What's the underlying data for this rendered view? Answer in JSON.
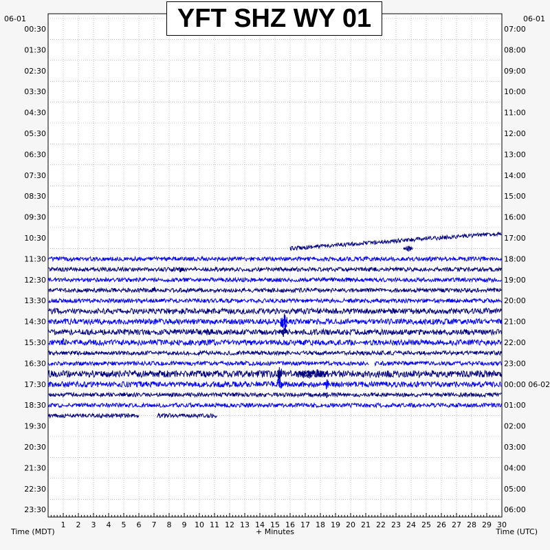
{
  "chart_data": {
    "type": "line",
    "title": "YFT SHZ WY 01",
    "date_left": "06-01",
    "date_right": "06-01",
    "left_times": [
      "00:30",
      "01:30",
      "02:30",
      "03:30",
      "04:30",
      "05:30",
      "06:30",
      "07:30",
      "08:30",
      "09:30",
      "10:30",
      "11:30",
      "12:30",
      "13:30",
      "14:30",
      "15:30",
      "16:30",
      "17:30",
      "18:30",
      "19:30",
      "20:30",
      "21:30",
      "22:30",
      "23:30"
    ],
    "right_times": [
      "07:00",
      "08:00",
      "09:00",
      "10:00",
      "11:00",
      "12:00",
      "13:00",
      "14:00",
      "15:00",
      "16:00",
      "17:00",
      "18:00",
      "19:00",
      "20:00",
      "21:00",
      "22:00",
      "23:00",
      "00:00 06-02",
      "01:00",
      "02:00",
      "03:00",
      "04:00",
      "05:00",
      "06:00"
    ],
    "xticks": [
      "1",
      "2",
      "3",
      "4",
      "5",
      "6",
      "7",
      "8",
      "9",
      "10",
      "11",
      "12",
      "13",
      "14",
      "15",
      "16",
      "17",
      "18",
      "19",
      "20",
      "21",
      "22",
      "23",
      "24",
      "25",
      "26",
      "27",
      "28",
      "29",
      "30"
    ],
    "xlabel": "+ Minutes",
    "xlabel_left": "Time (MDT)",
    "xlabel_right": "Time (UTC)",
    "xlim": [
      0,
      30
    ],
    "grid": true,
    "trace_colors": [
      "#000080",
      "#0000ff"
    ],
    "trace_rows": [
      {
        "row": 22,
        "start": 16,
        "end": 30,
        "amp": 3,
        "drift": -22
      },
      {
        "row": 23,
        "start": 0,
        "end": 30,
        "amp": 3
      },
      {
        "row": 24,
        "start": 0,
        "end": 30,
        "amp": 3
      },
      {
        "row": 25,
        "start": 0,
        "end": 30,
        "amp": 3
      },
      {
        "row": 26,
        "start": 0,
        "end": 30,
        "amp": 3
      },
      {
        "row": 27,
        "start": 0,
        "end": 30,
        "amp": 3
      },
      {
        "row": 28,
        "start": 0,
        "end": 30,
        "amp": 4
      },
      {
        "row": 29,
        "start": 0,
        "end": 30,
        "amp": 4
      },
      {
        "row": 30,
        "start": 0,
        "end": 30,
        "amp": 4
      },
      {
        "row": 31,
        "start": 0,
        "end": 30,
        "amp": 4
      },
      {
        "row": 32,
        "start": 0,
        "end": 30,
        "amp": 3
      },
      {
        "row": 33,
        "start": 0,
        "end": 21.2,
        "amp": 3
      },
      {
        "row": 33,
        "start": 21.6,
        "end": 30,
        "amp": 3
      },
      {
        "row": 34,
        "start": 0,
        "end": 30,
        "amp": 5
      },
      {
        "row": 35,
        "start": 0,
        "end": 30,
        "amp": 4
      },
      {
        "row": 36,
        "start": 0,
        "end": 30,
        "amp": 3
      },
      {
        "row": 37,
        "start": 0,
        "end": 30,
        "amp": 3
      },
      {
        "row": 38,
        "start": 0,
        "end": 6,
        "amp": 3
      },
      {
        "row": 38,
        "start": 7.2,
        "end": 11.2,
        "amp": 3
      }
    ],
    "events": [
      {
        "row": 29,
        "minute": 15.6,
        "amp": 16,
        "width": 0.45
      },
      {
        "row": 30,
        "minute": 15.6,
        "amp": 8,
        "width": 0.4
      },
      {
        "row": 31,
        "minute": 1.0,
        "amp": 8,
        "width": 0.2
      },
      {
        "row": 34,
        "minute": 15.3,
        "amp": 14,
        "width": 0.3
      },
      {
        "row": 34,
        "minute": 17.5,
        "amp": 8,
        "width": 2.0
      },
      {
        "row": 35,
        "minute": 15.3,
        "amp": 12,
        "width": 0.35
      },
      {
        "row": 35,
        "minute": 18.4,
        "amp": 10,
        "width": 0.3
      },
      {
        "row": 24,
        "minute": 8.8,
        "amp": 6,
        "width": 0.3
      },
      {
        "row": 26,
        "minute": 7.0,
        "amp": 5,
        "width": 0.3
      },
      {
        "row": 28,
        "minute": 22.8,
        "amp": 6,
        "width": 0.4
      },
      {
        "row": 30,
        "minute": 10.6,
        "amp": 6,
        "width": 0.6
      },
      {
        "row": 36,
        "minute": 18.4,
        "amp": 7,
        "width": 0.2
      },
      {
        "row": 22,
        "minute": 23.8,
        "amp": 5,
        "width": 0.6
      }
    ]
  }
}
